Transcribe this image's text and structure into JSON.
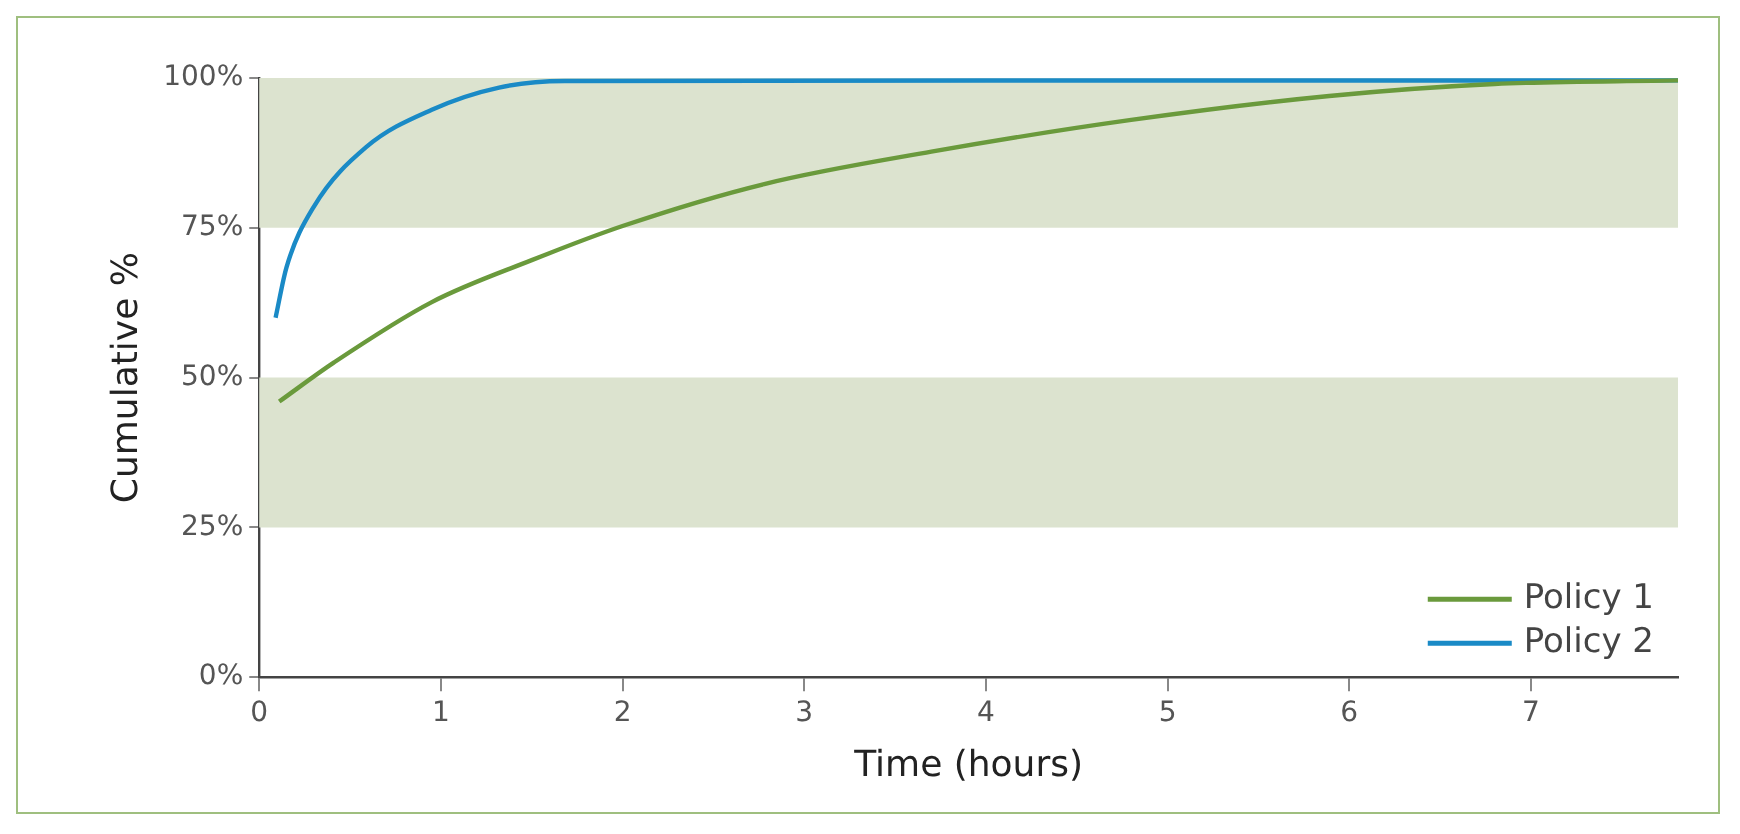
{
  "chart_data": {
    "type": "line",
    "xlabel": "Time (hours)",
    "ylabel": "Cumulative %",
    "xlim": [
      0,
      7.81
    ],
    "xticks": [
      0,
      1,
      2,
      3,
      4,
      5,
      6,
      7
    ],
    "ylim": [
      0,
      100
    ],
    "yticks": [
      {
        "value": 0,
        "label": "0%"
      },
      {
        "value": 25,
        "label": "25%"
      },
      {
        "value": 50,
        "label": "50%"
      },
      {
        "value": 75,
        "label": "75%"
      },
      {
        "value": 100,
        "label": "100%"
      }
    ],
    "grid": false,
    "legend": "bottom right",
    "marker": "none",
    "line_style": "solid",
    "bands": [
      {
        "axis": "y",
        "from": 25,
        "to": 50,
        "color": "#dce3cf"
      },
      {
        "axis": "y",
        "from": 75,
        "to": 100,
        "color": "#dce3cf"
      }
    ],
    "series": [
      {
        "name": "Policy 1",
        "color": "#6a9a3c",
        "x": [
          0.11,
          0.41,
          0.95,
          1.5,
          2.0,
          2.78,
          3.7,
          4.8,
          5.89,
          6.8,
          7.81
        ],
        "values": [
          46,
          52.5,
          62.6,
          69.6,
          75.3,
          82.3,
          87.7,
          93,
          97,
          99,
          99.6
        ]
      },
      {
        "name": "Policy 2",
        "color": "#1a8ac6",
        "x": [
          0.09,
          0.15,
          0.3,
          0.59,
          0.95,
          1.32,
          1.68,
          7.81
        ],
        "values": [
          60,
          68.4,
          78.5,
          88.5,
          94.7,
          98.4,
          99.5,
          99.6
        ]
      }
    ]
  }
}
